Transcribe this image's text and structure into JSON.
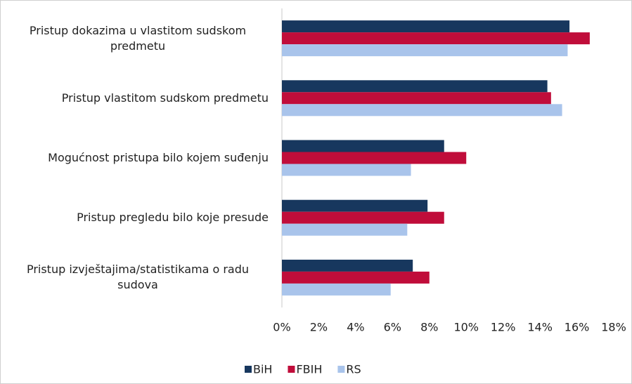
{
  "chart_data": {
    "type": "bar",
    "orientation": "horizontal",
    "categories": [
      "Pristup dokazima u vlastitom sudskom predmetu",
      "Pristup vlastitom sudskom predmetu",
      "Mogućnost pristupa bilo kojem suđenju",
      "Pristup pregledu bilo koje presude",
      "Pristup izvještajima/statistikama o radu sudova"
    ],
    "series": [
      {
        "name": "BiH",
        "color": "#17375e",
        "values": [
          15.6,
          14.4,
          8.8,
          7.9,
          7.1
        ]
      },
      {
        "name": "FBIH",
        "color": "#c00d3a",
        "values": [
          16.7,
          14.6,
          10.0,
          8.8,
          8.0
        ]
      },
      {
        "name": "RS",
        "color": "#a9c4eb",
        "values": [
          15.5,
          15.2,
          7.0,
          6.8,
          5.9
        ]
      }
    ],
    "xlim": [
      0,
      18
    ],
    "xticks": [
      {
        "value": 0,
        "label": "0%"
      },
      {
        "value": 2,
        "label": "2%"
      },
      {
        "value": 4,
        "label": "4%"
      },
      {
        "value": 6,
        "label": "6%"
      },
      {
        "value": 8,
        "label": "8%"
      },
      {
        "value": 10,
        "label": "10%"
      },
      {
        "value": 12,
        "label": "12%"
      },
      {
        "value": 14,
        "label": "14%"
      },
      {
        "value": 16,
        "label": "16%"
      },
      {
        "value": 18,
        "label": "18%"
      }
    ],
    "legend": "bottom"
  }
}
